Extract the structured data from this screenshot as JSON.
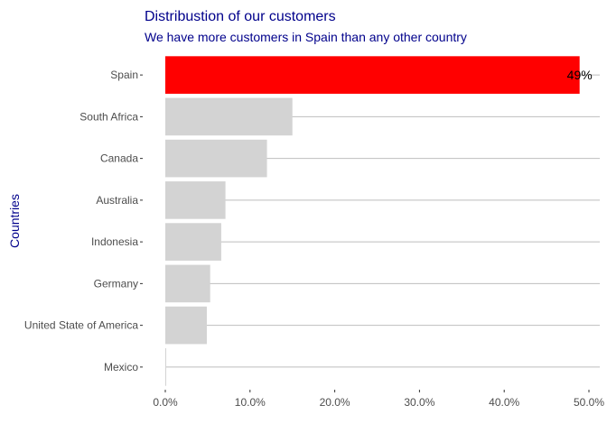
{
  "chart_data": {
    "type": "bar",
    "orientation": "horizontal",
    "title": "Distribustion of our customers",
    "subtitle": "We have more customers in Spain than any other country",
    "xlabel": "",
    "ylabel": "Countries",
    "categories": [
      "Spain",
      "South Africa",
      "Canada",
      "Australia",
      "Indonesia",
      "Germany",
      "United State of America",
      "Mexico"
    ],
    "values": [
      48.9,
      15.0,
      12.0,
      7.1,
      6.6,
      5.3,
      4.9,
      0.1
    ],
    "xlim": [
      0,
      50
    ],
    "x_ticks": [
      "0.0%",
      "10.0%",
      "20.0%",
      "30.0%",
      "40.0%",
      "50.0%"
    ],
    "x_tick_values": [
      0,
      10,
      20,
      30,
      40,
      50
    ],
    "data_labels": [
      {
        "category": "Spain",
        "text": "49%"
      }
    ],
    "highlight_category": "Spain",
    "colors": {
      "highlight": "#ff0000",
      "default": "#d3d3d3",
      "text": "#00008b"
    },
    "grid": true
  }
}
